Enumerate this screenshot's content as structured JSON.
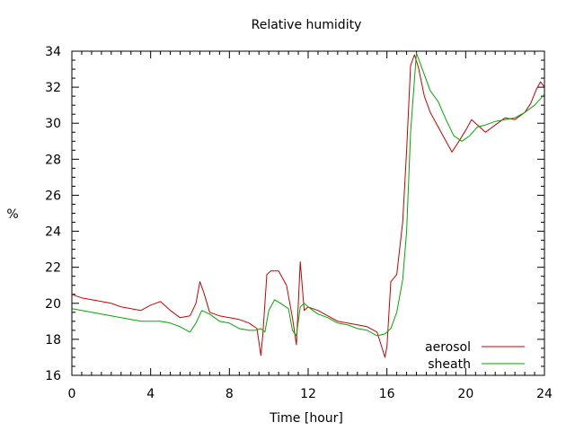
{
  "chart_data": {
    "type": "line",
    "title": "Relative humidity",
    "xlabel": "Time [hour]",
    "ylabel": "%",
    "xlim": [
      0,
      24
    ],
    "ylim": [
      16,
      34
    ],
    "xticks": [
      0,
      4,
      8,
      12,
      16,
      20,
      24
    ],
    "yticks": [
      16,
      18,
      20,
      22,
      24,
      26,
      28,
      30,
      32,
      34
    ],
    "grid": false,
    "legend": "bottom-right",
    "series": [
      {
        "name": "aerosol",
        "color": "#cc0000",
        "x": [
          0,
          0.5,
          1,
          1.5,
          2,
          2.5,
          3,
          3.5,
          4,
          4.5,
          5,
          5.5,
          6,
          6.3,
          6.5,
          6.7,
          7,
          7.5,
          8,
          8.5,
          9,
          9.4,
          9.6,
          9.7,
          9.9,
          10.1,
          10.5,
          10.9,
          11.2,
          11.4,
          11.6,
          11.8,
          12,
          12.5,
          13,
          13.5,
          14,
          14.5,
          15,
          15.5,
          15.9,
          16,
          16.2,
          16.5,
          16.8,
          17,
          17.2,
          17.4,
          17.6,
          17.9,
          18.2,
          18.6,
          19,
          19.3,
          19.6,
          20,
          20.3,
          20.6,
          21,
          21.5,
          22,
          22.5,
          23,
          23.3,
          23.6,
          23.8,
          24
        ],
        "y": [
          20.5,
          20.3,
          20.2,
          20.1,
          20.0,
          19.8,
          19.7,
          19.6,
          19.9,
          20.1,
          19.6,
          19.2,
          19.3,
          20.0,
          21.2,
          20.6,
          19.5,
          19.3,
          19.2,
          19.1,
          18.9,
          18.6,
          17.1,
          18.3,
          21.6,
          21.8,
          21.8,
          21.0,
          19.2,
          17.7,
          22.3,
          19.6,
          19.8,
          19.6,
          19.3,
          19.0,
          18.9,
          18.8,
          18.7,
          18.4,
          17.0,
          17.6,
          21.2,
          21.6,
          24.5,
          28.5,
          33.2,
          33.8,
          33.1,
          31.5,
          30.6,
          29.8,
          29.0,
          28.4,
          28.9,
          29.6,
          30.2,
          29.9,
          29.5,
          29.9,
          30.3,
          30.2,
          30.6,
          31.1,
          31.9,
          32.3,
          32.0
        ]
      },
      {
        "name": "sheath",
        "color": "#00aa00",
        "x": [
          0,
          0.5,
          1,
          1.5,
          2,
          2.5,
          3,
          3.5,
          4,
          4.5,
          5,
          5.5,
          6,
          6.3,
          6.6,
          7,
          7.5,
          8,
          8.5,
          9,
          9.3,
          9.6,
          9.8,
          10,
          10.3,
          10.6,
          11,
          11.2,
          11.4,
          11.6,
          11.8,
          12,
          12.5,
          13,
          13.5,
          14,
          14.5,
          15,
          15.5,
          15.9,
          16.2,
          16.5,
          16.8,
          17,
          17.2,
          17.5,
          17.8,
          18.2,
          18.6,
          19,
          19.4,
          19.8,
          20.2,
          20.6,
          21,
          21.5,
          22,
          22.5,
          23,
          23.5,
          24
        ],
        "y": [
          19.7,
          19.6,
          19.5,
          19.4,
          19.3,
          19.2,
          19.1,
          19.0,
          19.0,
          19.0,
          18.9,
          18.7,
          18.4,
          18.9,
          19.6,
          19.4,
          19.0,
          18.9,
          18.6,
          18.5,
          18.5,
          18.6,
          18.4,
          19.6,
          20.2,
          20.0,
          19.7,
          18.5,
          18.2,
          19.8,
          20.0,
          19.8,
          19.4,
          19.2,
          18.9,
          18.8,
          18.6,
          18.5,
          18.2,
          18.3,
          18.6,
          19.5,
          21.3,
          24.0,
          29.5,
          33.9,
          33.0,
          31.8,
          31.2,
          30.2,
          29.3,
          29.0,
          29.3,
          29.8,
          29.9,
          30.1,
          30.2,
          30.3,
          30.6,
          31.0,
          31.6
        ]
      }
    ]
  }
}
